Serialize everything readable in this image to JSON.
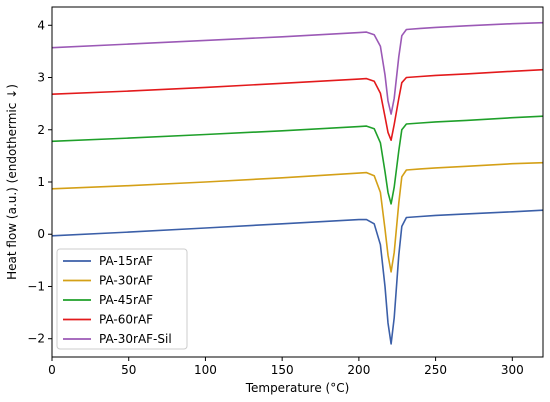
{
  "chart_data": {
    "type": "line",
    "title": "",
    "xlabel": "Temperature (°C)",
    "ylabel": "Heat flow (a.u.) (endothermic ↓)",
    "xlim": [
      0,
      320
    ],
    "ylim": [
      -2.35,
      4.35
    ],
    "xticks": [
      0,
      50,
      100,
      150,
      200,
      250,
      300
    ],
    "yticks": [
      -2,
      -1,
      0,
      1,
      2,
      3,
      4
    ],
    "grid": false,
    "legend_position": "lower-left",
    "series": [
      {
        "name": "PA-15rAF",
        "color": "#3b5fa8",
        "x": [
          0,
          50,
          100,
          150,
          200,
          205,
          210,
          214,
          217,
          219,
          221,
          223,
          226,
          228,
          231,
          240,
          250,
          270,
          300,
          320
        ],
        "y": [
          -0.03,
          0.04,
          0.12,
          0.2,
          0.28,
          0.28,
          0.2,
          -0.2,
          -1.0,
          -1.7,
          -2.1,
          -1.6,
          -0.4,
          0.15,
          0.32,
          0.34,
          0.36,
          0.39,
          0.43,
          0.46
        ]
      },
      {
        "name": "PA-30rAF",
        "color": "#d4a017",
        "x": [
          0,
          50,
          100,
          150,
          200,
          205,
          210,
          214,
          217,
          219,
          221,
          223,
          226,
          228,
          231,
          240,
          250,
          270,
          300,
          320
        ],
        "y": [
          0.87,
          0.93,
          1.0,
          1.08,
          1.17,
          1.18,
          1.12,
          0.8,
          0.1,
          -0.4,
          -0.72,
          -0.35,
          0.6,
          1.1,
          1.23,
          1.25,
          1.27,
          1.3,
          1.35,
          1.37
        ]
      },
      {
        "name": "PA-45rAF",
        "color": "#1fa02a",
        "x": [
          0,
          50,
          100,
          150,
          200,
          205,
          210,
          214,
          217,
          219,
          221,
          223,
          226,
          228,
          231,
          240,
          250,
          270,
          300,
          320
        ],
        "y": [
          1.78,
          1.84,
          1.91,
          1.98,
          2.06,
          2.07,
          2.02,
          1.75,
          1.2,
          0.8,
          0.58,
          0.9,
          1.6,
          2.0,
          2.11,
          2.13,
          2.15,
          2.18,
          2.23,
          2.26
        ]
      },
      {
        "name": "PA-60rAF",
        "color": "#e31a1c",
        "x": [
          0,
          50,
          100,
          150,
          200,
          205,
          210,
          214,
          217,
          219,
          221,
          223,
          226,
          228,
          231,
          240,
          250,
          270,
          300,
          320
        ],
        "y": [
          2.68,
          2.74,
          2.81,
          2.89,
          2.97,
          2.98,
          2.93,
          2.7,
          2.25,
          1.95,
          1.8,
          2.1,
          2.6,
          2.9,
          3.0,
          3.02,
          3.04,
          3.07,
          3.12,
          3.15
        ]
      },
      {
        "name": "PA-30rAF-Sil",
        "color": "#9b59b6",
        "x": [
          0,
          50,
          100,
          150,
          200,
          205,
          210,
          214,
          217,
          219,
          221,
          223,
          226,
          228,
          231,
          240,
          250,
          270,
          300,
          320
        ],
        "y": [
          3.57,
          3.64,
          3.71,
          3.78,
          3.86,
          3.87,
          3.82,
          3.6,
          3.05,
          2.55,
          2.3,
          2.6,
          3.4,
          3.8,
          3.92,
          3.94,
          3.96,
          3.99,
          4.03,
          4.05
        ]
      }
    ]
  }
}
